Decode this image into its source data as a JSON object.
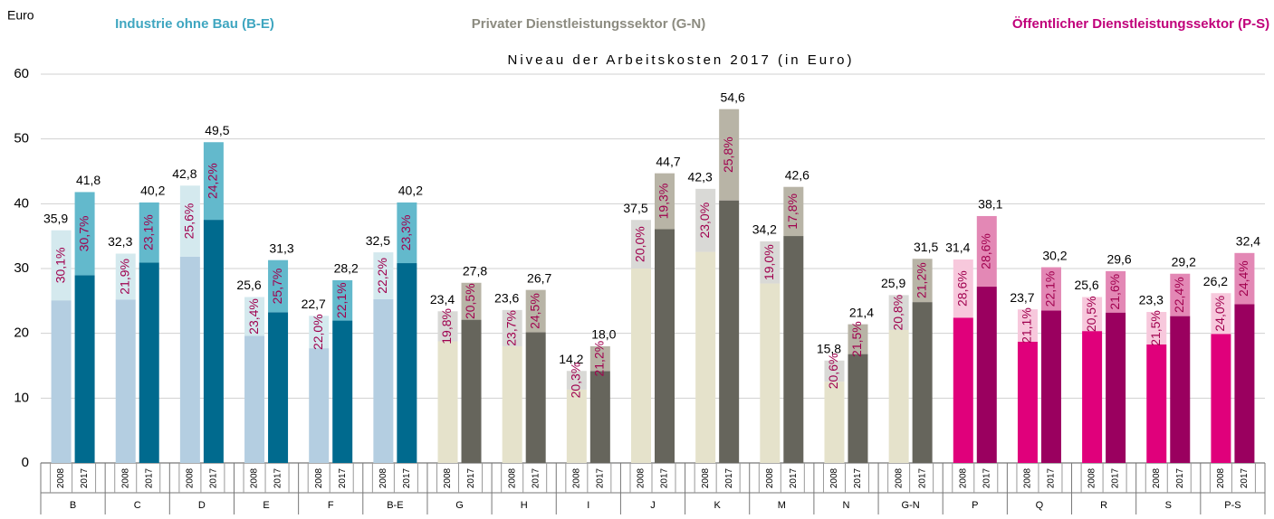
{
  "chart_data": {
    "type": "bar",
    "title": "Niveau der Arbeitskosten 2017 (in Euro)",
    "y_label": "Euro",
    "ylim": [
      0,
      60
    ],
    "yticks": [
      0,
      10,
      20,
      30,
      40,
      50,
      60
    ],
    "grid": true,
    "bar_labels": [
      "2008",
      "2017"
    ],
    "label_color": "#a0004e",
    "sectors": [
      {
        "name": "Industrie ohne Bau (B-E)",
        "color": "#3fa6c0",
        "colors": [
          [
            "#b4cee1",
            "#d4e9ee"
          ],
          [
            "#006a8e",
            "#63b9cc"
          ]
        ],
        "categories": [
          "B",
          "C",
          "D",
          "E",
          "F",
          "B-E"
        ],
        "series": [
          {
            "name": "2008",
            "values": [
              35.9,
              32.3,
              42.8,
              25.6,
              22.7,
              32.5
            ],
            "value_labels": [
              "35,9",
              "32,3",
              "42,8",
              "25,6",
              "22,7",
              "32,5"
            ],
            "shares": [
              30.1,
              21.9,
              25.6,
              23.4,
              22.0,
              22.2
            ],
            "share_labels": [
              "30,1%",
              "21,9%",
              "25,6%",
              "23,4%",
              "22,0%",
              "22,2%"
            ]
          },
          {
            "name": "2017",
            "values": [
              41.8,
              40.2,
              49.5,
              31.3,
              28.2,
              40.2
            ],
            "value_labels": [
              "41,8",
              "40,2",
              "49,5",
              "31,3",
              "28,2",
              "40,2"
            ],
            "shares": [
              30.7,
              23.1,
              24.2,
              25.7,
              22.1,
              23.3
            ],
            "share_labels": [
              "30,7%",
              "23,1%",
              "24,2%",
              "25,7%",
              "22,1%",
              "23,3%"
            ]
          }
        ]
      },
      {
        "name": "Privater Dienstleistungssektor (G-N)",
        "color": "#8c8b80",
        "colors": [
          [
            "#e5e2cb",
            "#d9d9d6"
          ],
          [
            "#66655c",
            "#b8b4a6"
          ]
        ],
        "categories": [
          "G",
          "H",
          "I",
          "J",
          "K",
          "M",
          "N",
          "G-N"
        ],
        "series": [
          {
            "name": "2008",
            "values": [
              23.4,
              23.6,
              14.2,
              37.5,
              42.3,
              34.2,
              15.8,
              25.9
            ],
            "value_labels": [
              "23,4",
              "23,6",
              "14,2",
              "37,5",
              "42,3",
              "34,2",
              "15,8",
              "25,9"
            ],
            "shares": [
              19.8,
              23.7,
              20.3,
              20.0,
              23.0,
              19.0,
              20.6,
              20.8
            ],
            "share_labels": [
              "19,8%",
              "23,7%",
              "20,3%",
              "20,0%",
              "23,0%",
              "19,0%",
              "20,6%",
              "20,8%"
            ]
          },
          {
            "name": "2017",
            "values": [
              27.8,
              26.7,
              18.0,
              44.7,
              54.6,
              42.6,
              21.4,
              31.5
            ],
            "value_labels": [
              "27,8",
              "26,7",
              "18,0",
              "44,7",
              "54,6",
              "42,6",
              "21,4",
              "31,5"
            ],
            "shares": [
              20.5,
              24.5,
              21.2,
              19.3,
              25.8,
              17.8,
              21.5,
              21.2
            ],
            "share_labels": [
              "20,5%",
              "24,5%",
              "21,2%",
              "19,3%",
              "25,8%",
              "17,8%",
              "21,5%",
              "21,2%"
            ]
          }
        ]
      },
      {
        "name": "Öffentlicher Dienstleistungssektor (P-S)",
        "color": "#c0007a",
        "colors": [
          [
            "#e0007b",
            "#f7c8dc"
          ],
          [
            "#9a005f",
            "#e388b5"
          ]
        ],
        "categories": [
          "P",
          "Q",
          "R",
          "S",
          "P-S"
        ],
        "series": [
          {
            "name": "2008",
            "values": [
              31.4,
              23.7,
              25.6,
              23.3,
              26.2
            ],
            "value_labels": [
              "31,4",
              "23,7",
              "25,6",
              "23,3",
              "26,2"
            ],
            "shares": [
              28.6,
              21.1,
              20.5,
              21.5,
              24.0
            ],
            "share_labels": [
              "28,6%",
              "21,1%",
              "20,5%",
              "21,5%",
              "24,0%"
            ]
          },
          {
            "name": "2017",
            "values": [
              38.1,
              30.2,
              29.6,
              29.2,
              32.4
            ],
            "value_labels": [
              "38,1",
              "30,2",
              "29,6",
              "29,2",
              "32,4"
            ],
            "shares": [
              28.6,
              22.1,
              21.6,
              22.4,
              24.4
            ],
            "share_labels": [
              "28,6%",
              "22,1%",
              "21,6%",
              "22,4%",
              "24,4%"
            ]
          }
        ]
      }
    ]
  }
}
